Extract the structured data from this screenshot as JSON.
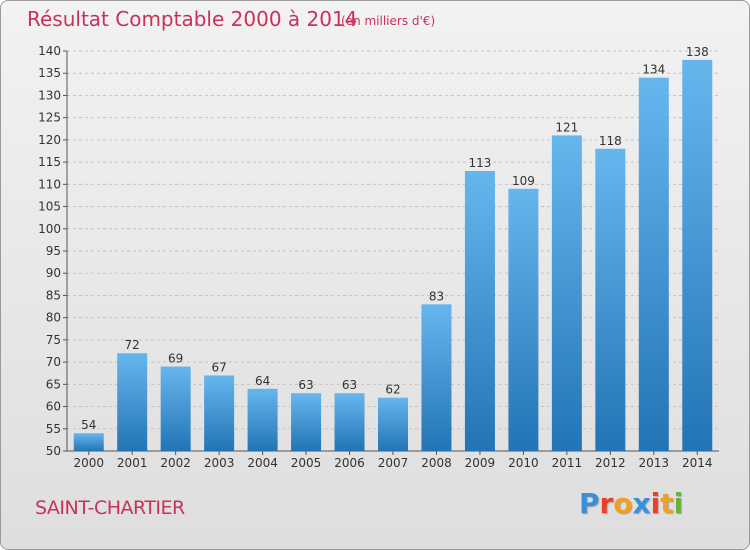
{
  "title": "Résultat Comptable 2000 à 2014",
  "subtitle": "(en milliers d'€)",
  "city": "SAINT-CHARTIER",
  "brand": {
    "letters": [
      "P",
      "r",
      "o",
      "x",
      "i",
      "t",
      "i"
    ],
    "colors": [
      "#3a8fd8",
      "#e8402a",
      "#f0a020",
      "#3a8fd8",
      "#e8402a",
      "#f0a020",
      "#64b43c"
    ]
  },
  "colors": {
    "bar_light": "#66b6ee",
    "bar_dark": "#2374b5",
    "text": "#c8325a"
  },
  "chart_data": {
    "type": "bar",
    "categories": [
      "2000",
      "2001",
      "2002",
      "2003",
      "2004",
      "2005",
      "2006",
      "2007",
      "2008",
      "2009",
      "2010",
      "2011",
      "2012",
      "2013",
      "2014"
    ],
    "values": [
      54,
      72,
      69,
      67,
      64,
      63,
      63,
      62,
      83,
      113,
      109,
      121,
      118,
      134,
      138
    ],
    "ylim": [
      50,
      140
    ],
    "yticks": [
      50,
      55,
      60,
      65,
      70,
      75,
      80,
      85,
      90,
      95,
      100,
      105,
      110,
      115,
      120,
      125,
      130,
      135,
      140
    ],
    "grid": true,
    "data_labels": true
  }
}
